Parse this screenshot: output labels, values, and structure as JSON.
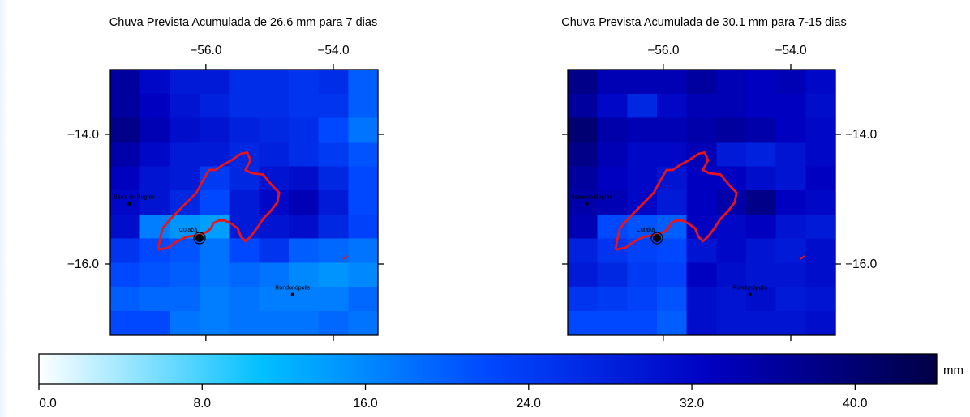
{
  "colors": {
    "outline": "#e8141b",
    "frame": "#000000"
  },
  "colorbar": {
    "min": 0,
    "max": 44,
    "stops": [
      "#ffffff",
      "#00bfff",
      "#0048ff",
      "#0000c0",
      "#000045"
    ],
    "ticks": [
      "0.0",
      "8.0",
      "16.0",
      "24.0",
      "32.0",
      "40.0"
    ],
    "unit": "mm"
  },
  "chart_data": [
    {
      "type": "heatmap",
      "title": "Chuva Prevista Acumulada de 26.6 mm para 7 dias",
      "x_ticks": [
        "−56.0",
        "−54.0"
      ],
      "y_ticks": [
        "−14.0",
        "−16.0"
      ],
      "xlim": [
        -57.5,
        -53.3
      ],
      "ylim": [
        -17.1,
        -13.0
      ],
      "grid": [
        [
          36,
          32,
          29,
          29,
          26,
          26,
          25,
          26,
          20
        ],
        [
          36,
          33,
          30,
          28,
          26,
          26,
          25,
          25,
          20
        ],
        [
          38,
          34,
          31,
          30,
          28,
          27,
          26,
          22,
          18
        ],
        [
          35,
          32,
          29,
          29,
          27,
          28,
          26,
          24,
          21
        ],
        [
          33,
          30,
          29,
          24,
          27,
          30,
          31,
          27,
          22
        ],
        [
          32,
          30,
          27,
          22,
          29,
          32,
          34,
          29,
          22
        ],
        [
          31,
          17,
          15,
          14,
          29,
          30,
          31,
          27,
          23
        ],
        [
          25,
          22,
          21,
          18,
          22,
          25,
          20,
          19,
          18
        ],
        [
          22,
          21,
          20,
          18,
          19,
          18,
          16,
          15,
          16
        ],
        [
          20,
          19,
          19,
          17,
          18,
          17,
          17,
          17,
          19
        ],
        [
          22,
          22,
          18,
          17,
          18,
          18,
          18,
          19,
          18
        ]
      ],
      "cities": [
        {
          "name": "Cuiabá",
          "lon": -56.1,
          "lat": -15.6
        },
        {
          "name": "Rondonópolis",
          "lon": -54.64,
          "lat": -16.47
        },
        {
          "name": "Barra do Bugres",
          "lon": -57.2,
          "lat": -15.07
        }
      ]
    },
    {
      "type": "heatmap",
      "title": "Chuva Prevista Acumulada de 30.1 mm para 7-15 dias",
      "x_ticks": [
        "−56.0",
        "−54.0"
      ],
      "y_ticks": [
        "−14.0",
        "−16.0"
      ],
      "xlim": [
        -57.5,
        -53.3
      ],
      "ylim": [
        -17.1,
        -13.0
      ],
      "grid": [
        [
          38,
          34,
          34,
          34,
          36,
          34,
          33,
          34,
          32
        ],
        [
          36,
          32,
          27,
          32,
          34,
          34,
          33,
          33,
          31
        ],
        [
          40,
          35,
          34,
          34,
          35,
          36,
          35,
          33,
          32
        ],
        [
          38,
          34,
          32,
          32,
          34,
          29,
          28,
          30,
          32
        ],
        [
          36,
          33,
          32,
          30,
          33,
          33,
          31,
          30,
          33
        ],
        [
          35,
          34,
          32,
          29,
          33,
          35,
          38,
          33,
          32
        ],
        [
          34,
          22,
          21,
          20,
          33,
          32,
          33,
          30,
          29
        ],
        [
          28,
          25,
          23,
          22,
          30,
          32,
          30,
          29,
          31
        ],
        [
          29,
          27,
          24,
          23,
          33,
          31,
          30,
          30,
          31
        ],
        [
          25,
          24,
          23,
          21,
          31,
          30,
          31,
          29,
          30
        ],
        [
          22,
          22,
          22,
          20,
          31,
          30,
          30,
          30,
          31
        ]
      ],
      "cities": [
        {
          "name": "Cuiabá",
          "lon": -56.1,
          "lat": -15.6
        },
        {
          "name": "Rondonópolis",
          "lon": -54.64,
          "lat": -16.47
        },
        {
          "name": "Barra do Bugres",
          "lon": -57.2,
          "lat": -15.07
        }
      ]
    }
  ]
}
